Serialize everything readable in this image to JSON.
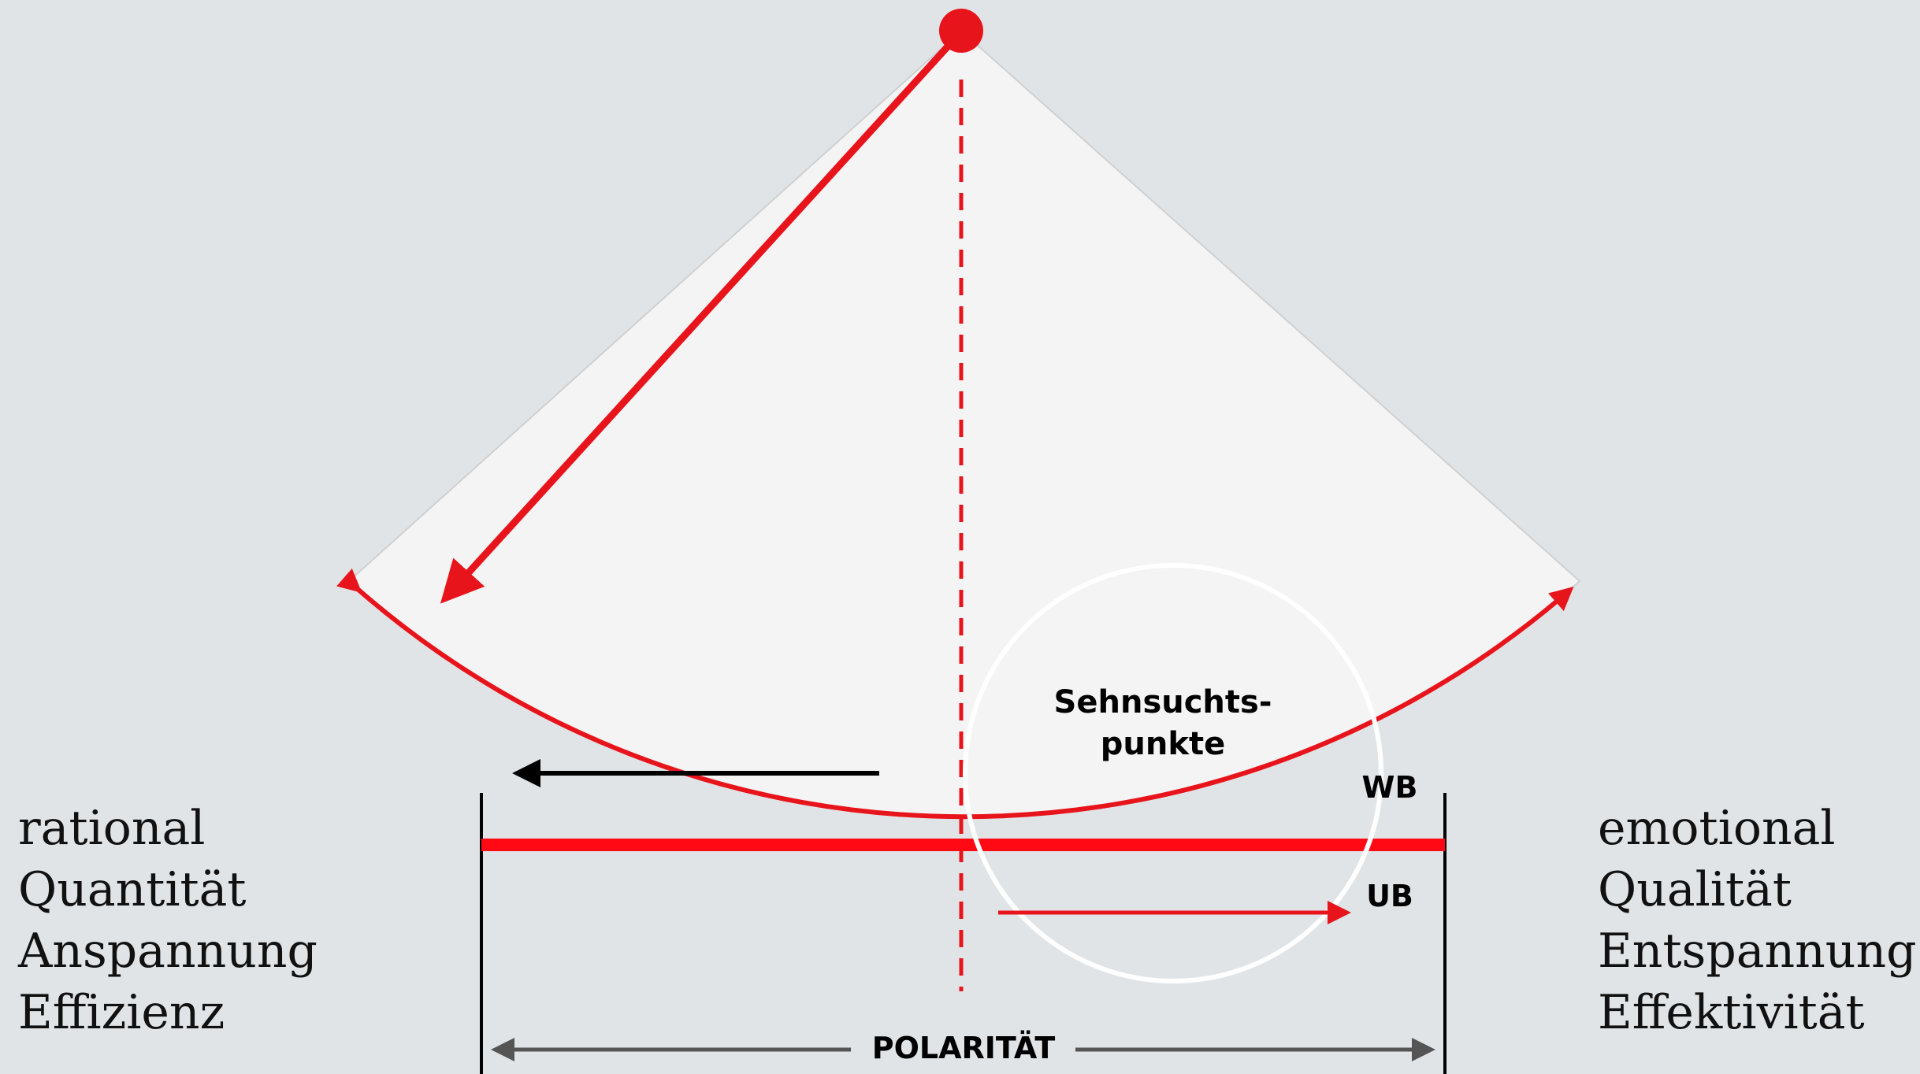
{
  "center_label": {
    "line1": "Sehnsuchts-",
    "line2": "punkte"
  },
  "wb_label": "WB",
  "ub_label": "UB",
  "axis_label": "POLARITÄT",
  "left_terms": [
    "rational",
    "Quantität",
    "Anspannung",
    "Effizienz"
  ],
  "right_terms": [
    "emotional",
    "Qualität",
    "Entspannung",
    "Effektivität"
  ]
}
